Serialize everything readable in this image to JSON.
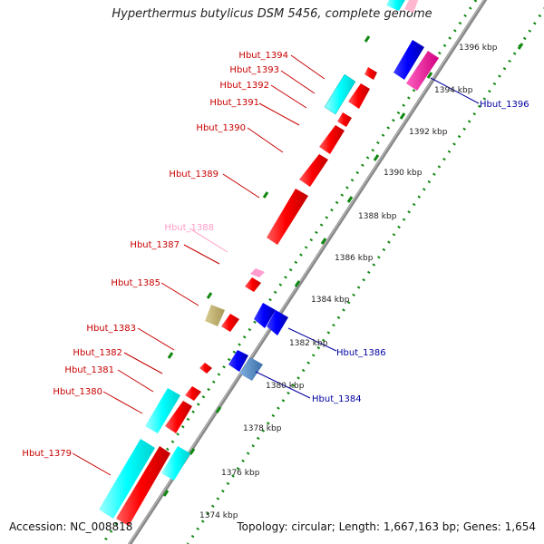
{
  "title": "Hyperthermus butylicus DSM 5456, complete genome",
  "footer": {
    "accession": "Accession: NC_008818",
    "summary": "Topology: circular; Length: 1,667,163 bp; Genes: 1,654"
  },
  "colors": {
    "forward_cds": "#ff0000",
    "reverse_cds": "#0000ff",
    "rna": "#00ffff",
    "pseudo": "#ff80b4",
    "backbone": "#7f7f7f",
    "tick": "#118811",
    "label_left": "#c80000",
    "label_right": "#0000a0",
    "label_faint": "#ff9cc8"
  },
  "scale": {
    "ticks": [
      "1374 kbp",
      "1376 kbp",
      "1378 kbp",
      "1380 kbp",
      "1382 kbp",
      "1384 kbp",
      "1386 kbp",
      "1388 kbp",
      "1390 kbp",
      "1392 kbp",
      "1394 kbp",
      "1396 kbp"
    ]
  },
  "labels_left": [
    {
      "text": "Hbut_1394",
      "color": "label_left"
    },
    {
      "text": "Hbut_1393",
      "color": "label_left"
    },
    {
      "text": "Hbut_1392",
      "color": "label_left"
    },
    {
      "text": "Hbut_1391",
      "color": "label_left"
    },
    {
      "text": "Hbut_1390",
      "color": "label_left"
    },
    {
      "text": "Hbut_1389",
      "color": "label_left"
    },
    {
      "text": "Hbut_1388",
      "color": "label_faint"
    },
    {
      "text": "Hbut_1387",
      "color": "label_left"
    },
    {
      "text": "Hbut_1385",
      "color": "label_left"
    },
    {
      "text": "Hbut_1383",
      "color": "label_left"
    },
    {
      "text": "Hbut_1382",
      "color": "label_left"
    },
    {
      "text": "Hbut_1381",
      "color": "label_left"
    },
    {
      "text": "Hbut_1380",
      "color": "label_left"
    },
    {
      "text": "Hbut_1379",
      "color": "label_left"
    }
  ],
  "labels_right": [
    {
      "text": "Hbut_1396",
      "color": "label_right"
    },
    {
      "text": "Hbut_1386",
      "color": "label_right"
    },
    {
      "text": "Hbut_1384",
      "color": "label_right"
    }
  ]
}
